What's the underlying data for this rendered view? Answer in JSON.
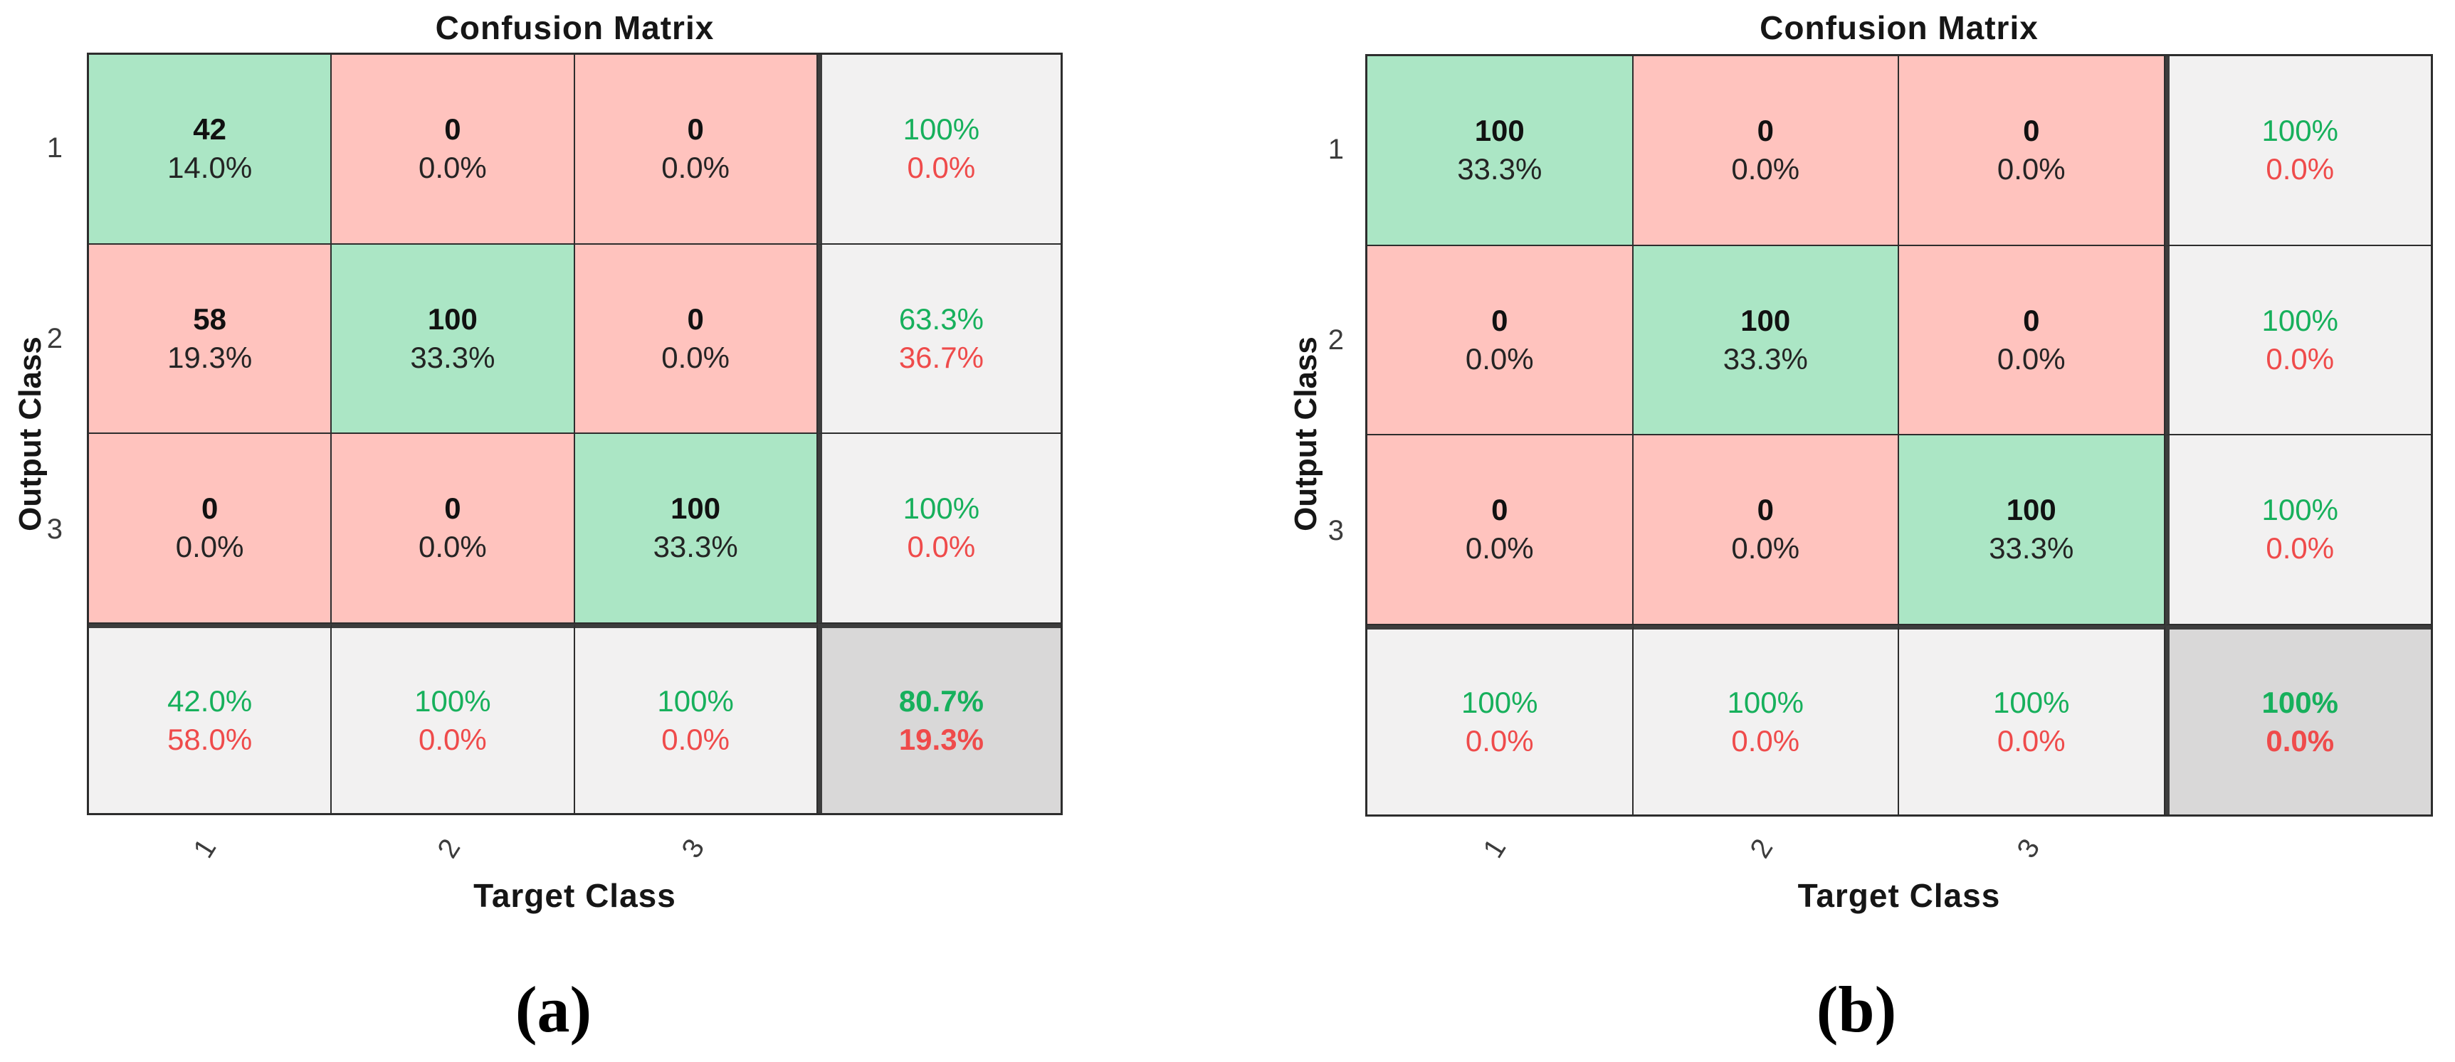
{
  "colors": {
    "cell_correct": "#abe6c5",
    "cell_incorrect": "#ffc3be",
    "cell_summary": "#f2f1f1",
    "cell_total": "#d9d8d8",
    "text_green": "#17b05c",
    "text_red": "#ef4b4b",
    "line_thin": "#2d2d2d",
    "line_thick": "#3d3d3d"
  },
  "panels": [
    {
      "title": "Confusion Matrix",
      "ylabel": "Output Class",
      "xlabel": "Target Class",
      "caption": "(a)",
      "row_ticks": [
        "1",
        "2",
        "3"
      ],
      "col_ticks": [
        "1",
        "2",
        "3"
      ],
      "cells": [
        [
          {
            "count": "42",
            "pct": "14.0%"
          },
          {
            "count": "0",
            "pct": "0.0%"
          },
          {
            "count": "0",
            "pct": "0.0%"
          }
        ],
        [
          {
            "count": "58",
            "pct": "19.3%"
          },
          {
            "count": "100",
            "pct": "33.3%"
          },
          {
            "count": "0",
            "pct": "0.0%"
          }
        ],
        [
          {
            "count": "0",
            "pct": "0.0%"
          },
          {
            "count": "0",
            "pct": "0.0%"
          },
          {
            "count": "100",
            "pct": "33.3%"
          }
        ]
      ],
      "row_summary": [
        {
          "green": "100%",
          "red": "0.0%"
        },
        {
          "green": "63.3%",
          "red": "36.7%"
        },
        {
          "green": "100%",
          "red": "0.0%"
        }
      ],
      "col_summary": [
        {
          "green": "42.0%",
          "red": "58.0%"
        },
        {
          "green": "100%",
          "red": "0.0%"
        },
        {
          "green": "100%",
          "red": "0.0%"
        }
      ],
      "total": {
        "green": "80.7%",
        "red": "19.3%"
      }
    },
    {
      "title": "Confusion Matrix",
      "ylabel": "Output Class",
      "xlabel": "Target Class",
      "caption": "(b)",
      "row_ticks": [
        "1",
        "2",
        "3"
      ],
      "col_ticks": [
        "1",
        "2",
        "3"
      ],
      "cells": [
        [
          {
            "count": "100",
            "pct": "33.3%"
          },
          {
            "count": "0",
            "pct": "0.0%"
          },
          {
            "count": "0",
            "pct": "0.0%"
          }
        ],
        [
          {
            "count": "0",
            "pct": "0.0%"
          },
          {
            "count": "100",
            "pct": "33.3%"
          },
          {
            "count": "0",
            "pct": "0.0%"
          }
        ],
        [
          {
            "count": "0",
            "pct": "0.0%"
          },
          {
            "count": "0",
            "pct": "0.0%"
          },
          {
            "count": "100",
            "pct": "33.3%"
          }
        ]
      ],
      "row_summary": [
        {
          "green": "100%",
          "red": "0.0%"
        },
        {
          "green": "100%",
          "red": "0.0%"
        },
        {
          "green": "100%",
          "red": "0.0%"
        }
      ],
      "col_summary": [
        {
          "green": "100%",
          "red": "0.0%"
        },
        {
          "green": "100%",
          "red": "0.0%"
        },
        {
          "green": "100%",
          "red": "0.0%"
        }
      ],
      "total": {
        "green": "100%",
        "red": "0.0%"
      }
    }
  ],
  "chart_data": [
    {
      "type": "heatmap",
      "title": "Confusion Matrix",
      "xlabel": "Target Class",
      "ylabel": "Output Class",
      "caption": "(a)",
      "classes": [
        "1",
        "2",
        "3"
      ],
      "counts": [
        [
          42,
          0,
          0
        ],
        [
          58,
          100,
          0
        ],
        [
          0,
          0,
          100
        ]
      ],
      "count_pct": [
        [
          "14.0%",
          "0.0%",
          "0.0%"
        ],
        [
          "19.3%",
          "33.3%",
          "0.0%"
        ],
        [
          "0.0%",
          "0.0%",
          "33.3%"
        ]
      ],
      "row_summary_pct": [
        [
          "100%",
          "0.0%"
        ],
        [
          "63.3%",
          "36.7%"
        ],
        [
          "100%",
          "0.0%"
        ]
      ],
      "col_summary_pct": [
        [
          "42.0%",
          "58.0%"
        ],
        [
          "100%",
          "0.0%"
        ],
        [
          "100%",
          "0.0%"
        ]
      ],
      "overall_pct": [
        "80.7%",
        "19.3%"
      ],
      "legend_position": "none",
      "grid": true
    },
    {
      "type": "heatmap",
      "title": "Confusion Matrix",
      "xlabel": "Target Class",
      "ylabel": "Output Class",
      "caption": "(b)",
      "classes": [
        "1",
        "2",
        "3"
      ],
      "counts": [
        [
          100,
          0,
          0
        ],
        [
          0,
          100,
          0
        ],
        [
          0,
          0,
          100
        ]
      ],
      "count_pct": [
        [
          "33.3%",
          "0.0%",
          "0.0%"
        ],
        [
          "0.0%",
          "33.3%",
          "0.0%"
        ],
        [
          "0.0%",
          "0.0%",
          "33.3%"
        ]
      ],
      "row_summary_pct": [
        [
          "100%",
          "0.0%"
        ],
        [
          "100%",
          "0.0%"
        ],
        [
          "100%",
          "0.0%"
        ]
      ],
      "col_summary_pct": [
        [
          "100%",
          "0.0%"
        ],
        [
          "100%",
          "0.0%"
        ],
        [
          "100%",
          "0.0%"
        ]
      ],
      "overall_pct": [
        "100%",
        "0.0%"
      ],
      "legend_position": "none",
      "grid": true
    }
  ]
}
